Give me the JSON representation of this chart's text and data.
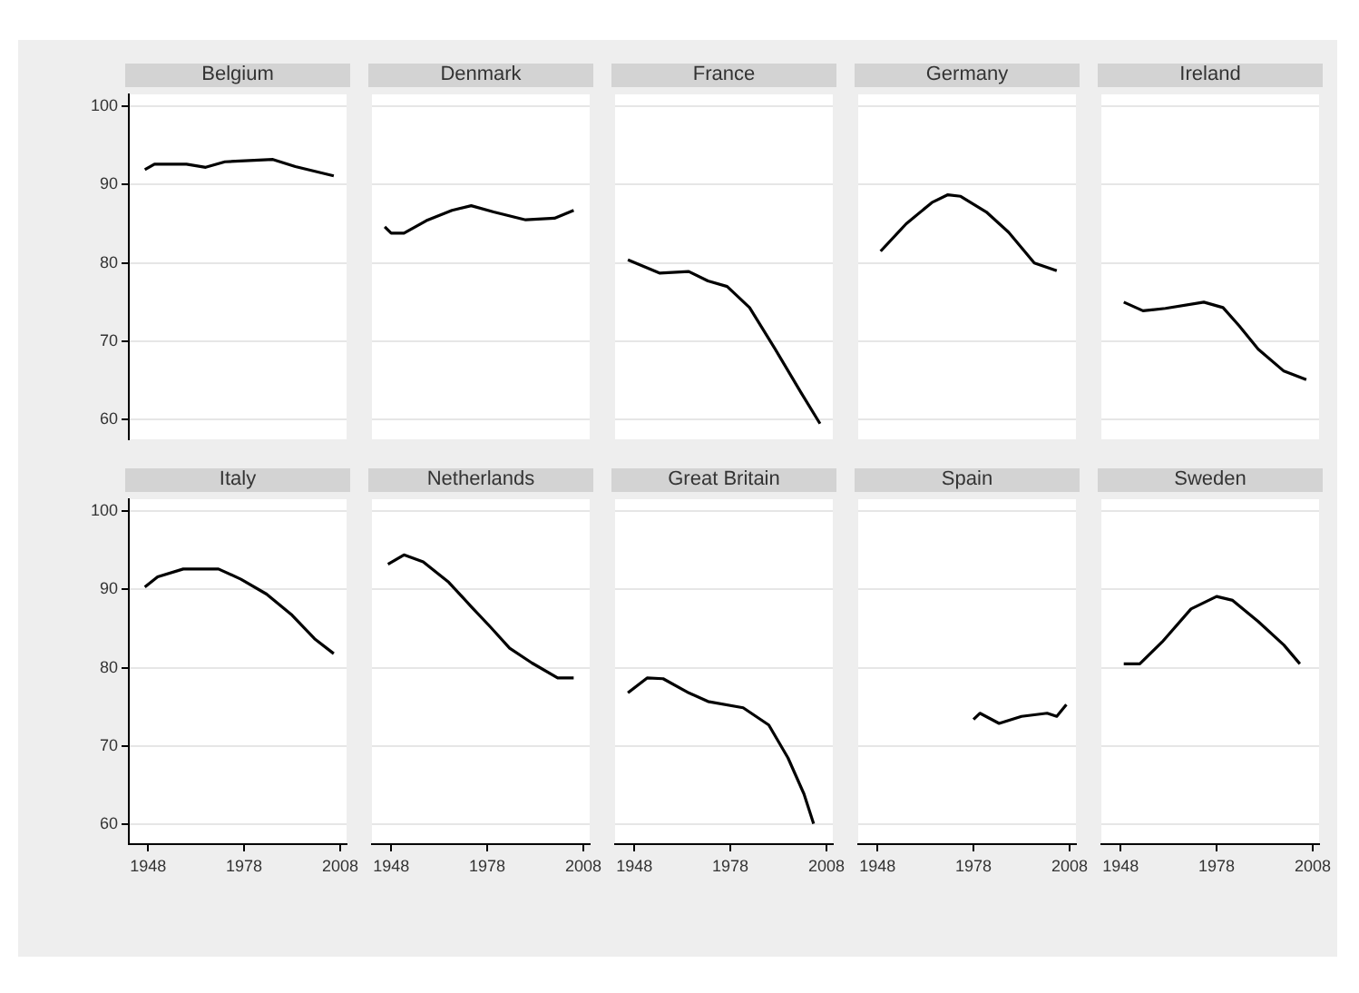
{
  "chart_data": [
    {
      "type": "line",
      "title": "Belgium",
      "color": "#000000",
      "x": [
        1947,
        1950,
        1960,
        1966,
        1972,
        1987,
        1994,
        2006
      ],
      "values": [
        91.9,
        92.6,
        92.6,
        92.2,
        92.9,
        93.2,
        92.3,
        91.1
      ],
      "xlim": [
        1942,
        2010
      ],
      "ylim": [
        57.5,
        101.5
      ],
      "yticks": [
        60,
        70,
        80,
        90,
        100
      ],
      "grid": "y",
      "tick_labels": "y"
    },
    {
      "type": "line",
      "title": "Denmark",
      "color": "#000000",
      "x": [
        1946,
        1948,
        1952,
        1959,
        1967,
        1973,
        1980,
        1990,
        1999,
        2005
      ],
      "values": [
        84.6,
        83.8,
        83.8,
        85.4,
        86.7,
        87.3,
        86.5,
        85.5,
        85.7,
        86.7
      ],
      "xlim": [
        1942,
        2010
      ],
      "ylim": [
        57.5,
        101.5
      ],
      "yticks": [
        60,
        70,
        80,
        90,
        100
      ],
      "grid": "y",
      "tick_labels": false
    },
    {
      "type": "line",
      "title": "France",
      "color": "#000000",
      "x": [
        1946,
        1956,
        1965,
        1971,
        1977,
        1984,
        1992,
        2000,
        2006
      ],
      "values": [
        80.4,
        78.7,
        78.9,
        77.7,
        77.0,
        74.3,
        69.0,
        63.5,
        59.5
      ],
      "xlim": [
        1942,
        2010
      ],
      "ylim": [
        57.5,
        101.5
      ],
      "yticks": [
        60,
        70,
        80,
        90,
        100
      ],
      "grid": "y",
      "tick_labels": false
    },
    {
      "type": "line",
      "title": "Germany",
      "color": "#000000",
      "x": [
        1949,
        1957,
        1965,
        1970,
        1974,
        1982,
        1989,
        1997,
        2004
      ],
      "values": [
        81.5,
        85.0,
        87.7,
        88.7,
        88.5,
        86.5,
        83.9,
        80.0,
        79.0
      ],
      "xlim": [
        1942,
        2010
      ],
      "ylim": [
        57.5,
        101.5
      ],
      "yticks": [
        60,
        70,
        80,
        90,
        100
      ],
      "grid": "y",
      "tick_labels": false
    },
    {
      "type": "line",
      "title": "Ireland",
      "color": "#000000",
      "x": [
        1949,
        1955,
        1962,
        1974,
        1980,
        1985,
        1991,
        1999,
        2006
      ],
      "values": [
        75.0,
        73.9,
        74.2,
        75.0,
        74.3,
        72.0,
        69.0,
        66.2,
        65.1
      ],
      "xlim": [
        1942,
        2010
      ],
      "ylim": [
        57.5,
        101.5
      ],
      "yticks": [
        60,
        70,
        80,
        90,
        100
      ],
      "grid": "y",
      "tick_labels": false
    },
    {
      "type": "line",
      "title": "Italy",
      "color": "#000000",
      "x": [
        1947,
        1951,
        1959,
        1970,
        1977,
        1985,
        1993,
        2000,
        2006
      ],
      "values": [
        90.3,
        91.6,
        92.6,
        92.6,
        91.3,
        89.4,
        86.7,
        83.7,
        81.8
      ],
      "xlim": [
        1942,
        2010
      ],
      "ylim": [
        57.5,
        101.5
      ],
      "xticks": [
        1948,
        1978,
        2008
      ],
      "yticks": [
        60,
        70,
        80,
        90,
        100
      ],
      "grid": "y"
    },
    {
      "type": "line",
      "title": "Netherlands",
      "color": "#000000",
      "x": [
        1947,
        1952,
        1958,
        1966,
        1973,
        1979,
        1985,
        1992,
        2000,
        2005
      ],
      "values": [
        93.2,
        94.4,
        93.5,
        90.9,
        87.8,
        85.2,
        82.5,
        80.6,
        78.7,
        78.7
      ],
      "xlim": [
        1942,
        2010
      ],
      "ylim": [
        57.5,
        101.5
      ],
      "xticks": [
        1948,
        1978,
        2008
      ],
      "yticks": [
        60,
        70,
        80,
        90,
        100
      ],
      "grid": "y",
      "tick_labels": "x"
    },
    {
      "type": "line",
      "title": "Great Britain",
      "color": "#000000",
      "x": [
        1946,
        1952,
        1957,
        1965,
        1971,
        1982,
        1990,
        1996,
        2001,
        2004
      ],
      "values": [
        76.8,
        78.7,
        78.6,
        76.8,
        75.7,
        74.9,
        72.7,
        68.5,
        63.9,
        60.1
      ],
      "xlim": [
        1942,
        2010
      ],
      "ylim": [
        57.5,
        101.5
      ],
      "xticks": [
        1948,
        1978,
        2008
      ],
      "yticks": [
        60,
        70,
        80,
        90,
        100
      ],
      "grid": "y",
      "tick_labels": "x"
    },
    {
      "type": "line",
      "title": "Spain",
      "color": "#000000",
      "x": [
        1978,
        1980,
        1986,
        1993,
        2001,
        2004,
        2007
      ],
      "values": [
        73.4,
        74.2,
        72.9,
        73.8,
        74.2,
        73.8,
        75.3
      ],
      "xlim": [
        1942,
        2010
      ],
      "ylim": [
        57.5,
        101.5
      ],
      "xticks": [
        1948,
        1978,
        2008
      ],
      "yticks": [
        60,
        70,
        80,
        90,
        100
      ],
      "grid": "y",
      "tick_labels": "x"
    },
    {
      "type": "line",
      "title": "Sweden",
      "color": "#000000",
      "x": [
        1949,
        1954,
        1961,
        1970,
        1978,
        1983,
        1991,
        1999,
        2004
      ],
      "values": [
        80.5,
        80.5,
        83.3,
        87.5,
        89.1,
        88.6,
        85.9,
        82.9,
        80.5
      ],
      "xlim": [
        1942,
        2010
      ],
      "ylim": [
        57.5,
        101.5
      ],
      "xticks": [
        1948,
        1978,
        2008
      ],
      "yticks": [
        60,
        70,
        80,
        90,
        100
      ],
      "grid": "y",
      "tick_labels": "x"
    }
  ]
}
